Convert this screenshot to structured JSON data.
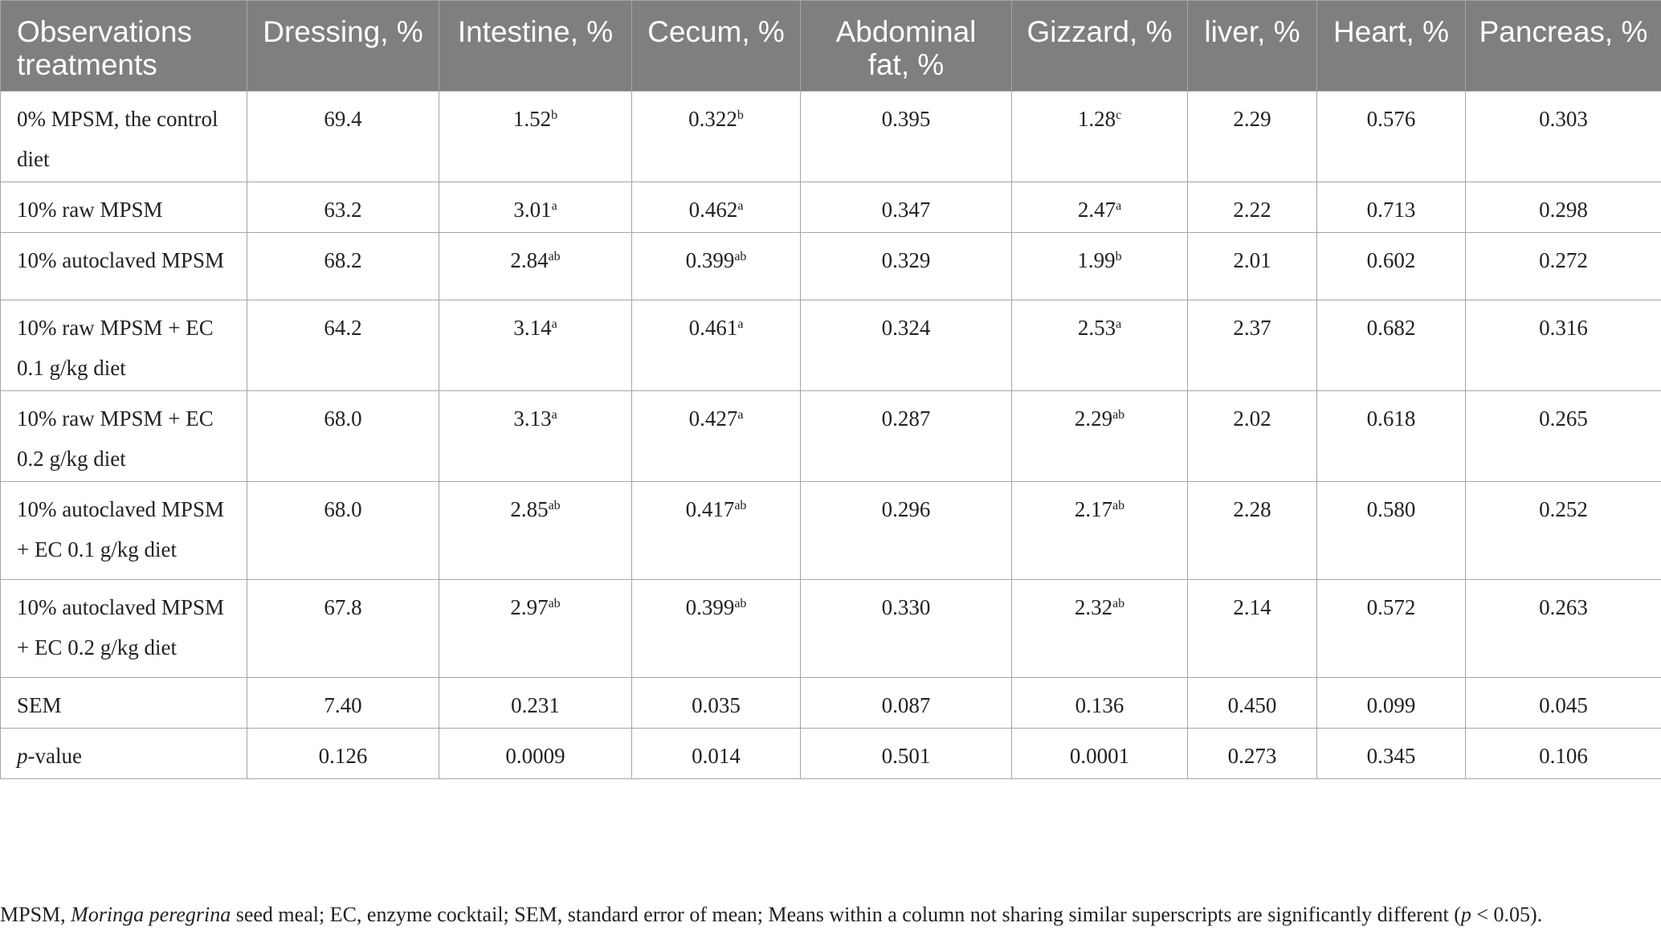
{
  "table": {
    "headers": [
      "Observations treatments",
      "Dressing, %",
      "Intestine, %",
      "Cecum, %",
      "Abdominal fat, %",
      "Gizzard, %",
      "liver, %",
      "Heart, %",
      "Pancreas, %"
    ],
    "rows": [
      {
        "label": "0% MPSM, the control diet",
        "cells": [
          {
            "v": "69.4",
            "s": ""
          },
          {
            "v": "1.52",
            "s": "b"
          },
          {
            "v": "0.322",
            "s": "b"
          },
          {
            "v": "0.395",
            "s": ""
          },
          {
            "v": "1.28",
            "s": "c"
          },
          {
            "v": "2.29",
            "s": ""
          },
          {
            "v": "0.576",
            "s": ""
          },
          {
            "v": "0.303",
            "s": ""
          }
        ]
      },
      {
        "label": "10% raw MPSM",
        "cells": [
          {
            "v": "63.2",
            "s": ""
          },
          {
            "v": "3.01",
            "s": "a"
          },
          {
            "v": "0.462",
            "s": "a"
          },
          {
            "v": "0.347",
            "s": ""
          },
          {
            "v": "2.47",
            "s": "a"
          },
          {
            "v": "2.22",
            "s": ""
          },
          {
            "v": "0.713",
            "s": ""
          },
          {
            "v": "0.298",
            "s": ""
          }
        ]
      },
      {
        "label": "10% autoclaved MPSM",
        "cells": [
          {
            "v": "68.2",
            "s": ""
          },
          {
            "v": "2.84",
            "s": "ab"
          },
          {
            "v": "0.399",
            "s": "ab"
          },
          {
            "v": "0.329",
            "s": ""
          },
          {
            "v": "1.99",
            "s": "b"
          },
          {
            "v": "2.01",
            "s": ""
          },
          {
            "v": "0.602",
            "s": ""
          },
          {
            "v": "0.272",
            "s": ""
          }
        ]
      },
      {
        "label": "10% raw MPSM + EC 0.1 g/kg diet",
        "cells": [
          {
            "v": "64.2",
            "s": ""
          },
          {
            "v": "3.14",
            "s": "a"
          },
          {
            "v": "0.461",
            "s": "a"
          },
          {
            "v": "0.324",
            "s": ""
          },
          {
            "v": "2.53",
            "s": "a"
          },
          {
            "v": "2.37",
            "s": ""
          },
          {
            "v": "0.682",
            "s": ""
          },
          {
            "v": "0.316",
            "s": ""
          }
        ]
      },
      {
        "label": "10% raw MPSM + EC 0.2 g/kg diet",
        "cells": [
          {
            "v": "68.0",
            "s": ""
          },
          {
            "v": "3.13",
            "s": "a"
          },
          {
            "v": "0.427",
            "s": "a"
          },
          {
            "v": "0.287",
            "s": ""
          },
          {
            "v": "2.29",
            "s": "ab"
          },
          {
            "v": "2.02",
            "s": ""
          },
          {
            "v": "0.618",
            "s": ""
          },
          {
            "v": "0.265",
            "s": ""
          }
        ]
      },
      {
        "label": "10% autoclaved MPSM + EC 0.1 g/kg diet",
        "cells": [
          {
            "v": "68.0",
            "s": ""
          },
          {
            "v": "2.85",
            "s": "ab"
          },
          {
            "v": "0.417",
            "s": "ab"
          },
          {
            "v": "0.296",
            "s": ""
          },
          {
            "v": "2.17",
            "s": "ab"
          },
          {
            "v": "2.28",
            "s": ""
          },
          {
            "v": "0.580",
            "s": ""
          },
          {
            "v": "0.252",
            "s": ""
          }
        ]
      },
      {
        "label": "10% autoclaved MPSM + EC 0.2 g/kg diet",
        "cells": [
          {
            "v": "67.8",
            "s": ""
          },
          {
            "v": "2.97",
            "s": "ab"
          },
          {
            "v": "0.399",
            "s": "ab"
          },
          {
            "v": "0.330",
            "s": ""
          },
          {
            "v": "2.32",
            "s": "ab"
          },
          {
            "v": "2.14",
            "s": ""
          },
          {
            "v": "0.572",
            "s": ""
          },
          {
            "v": "0.263",
            "s": ""
          }
        ]
      },
      {
        "label": "SEM",
        "cells": [
          {
            "v": "7.40",
            "s": ""
          },
          {
            "v": "0.231",
            "s": ""
          },
          {
            "v": "0.035",
            "s": ""
          },
          {
            "v": "0.087",
            "s": ""
          },
          {
            "v": "0.136",
            "s": ""
          },
          {
            "v": "0.450",
            "s": ""
          },
          {
            "v": "0.099",
            "s": ""
          },
          {
            "v": "0.045",
            "s": ""
          }
        ]
      },
      {
        "label": "p-value",
        "italic_prefix": "p",
        "label_rest": "-value",
        "cells": [
          {
            "v": "0.126",
            "s": ""
          },
          {
            "v": "0.0009",
            "s": ""
          },
          {
            "v": "0.014",
            "s": ""
          },
          {
            "v": "0.501",
            "s": ""
          },
          {
            "v": "0.0001",
            "s": ""
          },
          {
            "v": "0.273",
            "s": ""
          },
          {
            "v": "0.345",
            "s": ""
          },
          {
            "v": "0.106",
            "s": ""
          }
        ]
      }
    ]
  },
  "footnote": {
    "part1": "MPSM, ",
    "species": "Moringa peregrina",
    "part2": " seed meal; EC, enzyme cocktail; SEM, standard error of mean; Means within a column not sharing similar superscripts are significantly different (",
    "p": "p",
    "part3": " < 0.05)."
  }
}
